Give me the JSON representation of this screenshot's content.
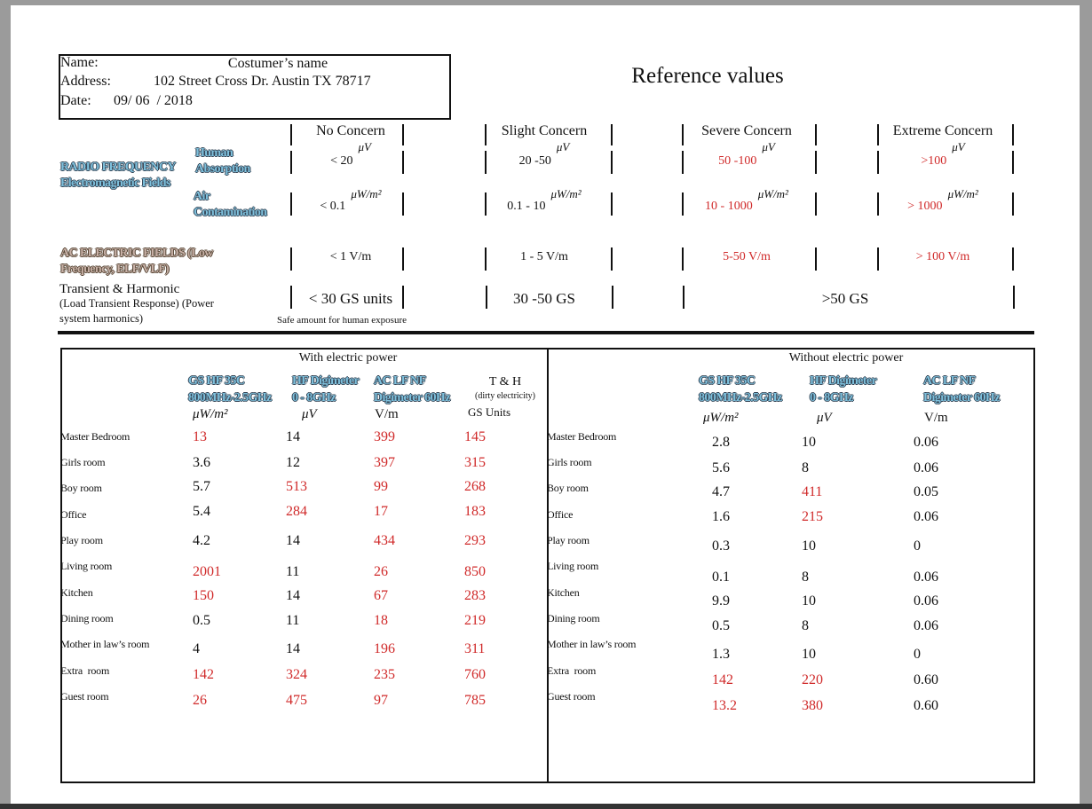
{
  "header": {
    "name_label": "Name:",
    "name": "Costumer’s name",
    "address_label": "Address:",
    "address": "102 Street Cross Dr. Austin TX 78717",
    "date_label": "Date:",
    "date": "09/ 06  / 2018"
  },
  "reference": {
    "title": "Reference values",
    "levels": [
      "No Concern",
      "Slight Concern",
      "Severe Concern",
      "Extreme Concern"
    ],
    "rf_label": [
      "RADIO FREQUENCY",
      "Electromagnetic Fields"
    ],
    "rows": [
      {
        "label": [
          "Human",
          "Absorption"
        ],
        "unit": "μV",
        "values": [
          "< 20",
          "20 -50",
          "50 -100",
          ">100"
        ]
      },
      {
        "label": [
          "Air",
          "Contamination"
        ],
        "unit": "μW/m²",
        "values": [
          "< 0.1",
          "0.1 - 10",
          "10 - 1000",
          "> 1000"
        ]
      },
      {
        "label": [
          "AC ELECTRIC FIELDS (Low",
          "Frequency, ELF/VLF)"
        ],
        "values": [
          "< 1 V/m",
          "1 - 5 V/m",
          "5-50 V/m",
          "> 100 V/m"
        ]
      },
      {
        "label": [
          "Transient & Harmonic",
          "(Load Transient Response) (Power",
          "system harmonics)"
        ],
        "values": [
          "< 30 GS units",
          "30 -50 GS",
          ">50 GS"
        ],
        "note": "Safe amount for human exposure"
      }
    ]
  },
  "measurements": [
    {
      "title": "With electric power",
      "columns": [
        {
          "name": [
            "GS HF 35C",
            "800MHz-2.5GHz"
          ],
          "unit": "μW/m²"
        },
        {
          "name": [
            "HF Digimeter",
            "0 - 8GHz"
          ],
          "unit": "μV"
        },
        {
          "name": [
            "AC LF NF",
            "Digimeter 60Hz"
          ],
          "unit": "V/m"
        },
        {
          "name": [
            "T & H"
          ],
          "sub": "(dirty electricity)",
          "unit": "GS Units"
        }
      ],
      "rows": [
        {
          "room": "Master Bedroom",
          "values": [
            "13",
            "14",
            "399",
            "145"
          ],
          "highlight": [
            true,
            false,
            true,
            true
          ]
        },
        {
          "room": "Girls room",
          "values": [
            "3.6",
            "12",
            "397",
            "315"
          ],
          "highlight": [
            false,
            false,
            true,
            true
          ]
        },
        {
          "room": "Boy room",
          "values": [
            "5.7",
            "513",
            "99",
            "268"
          ],
          "highlight": [
            false,
            true,
            true,
            true
          ]
        },
        {
          "room": "Office",
          "values": [
            "5.4",
            "284",
            "17",
            "183"
          ],
          "highlight": [
            false,
            true,
            true,
            true
          ]
        },
        {
          "room": "Play room",
          "values": [
            "4.2",
            "14",
            "434",
            "293"
          ],
          "highlight": [
            false,
            false,
            true,
            true
          ]
        },
        {
          "room": "Living room",
          "values": [
            "2001",
            "11",
            "26",
            "850"
          ],
          "highlight": [
            true,
            false,
            true,
            true
          ]
        },
        {
          "room": "Kitchen",
          "values": [
            "150",
            "14",
            "67",
            "283"
          ],
          "highlight": [
            true,
            false,
            true,
            true
          ]
        },
        {
          "room": "Dining room",
          "values": [
            "0.5",
            "11",
            "18",
            "219"
          ],
          "highlight": [
            false,
            false,
            true,
            true
          ]
        },
        {
          "room": "Mother in law’s room",
          "values": [
            "4",
            "14",
            "196",
            "311"
          ],
          "highlight": [
            false,
            false,
            true,
            true
          ]
        },
        {
          "room": "Extra  room",
          "values": [
            "142",
            "324",
            "235",
            "760"
          ],
          "highlight": [
            true,
            true,
            true,
            true
          ]
        },
        {
          "room": "Guest room",
          "values": [
            "26",
            "475",
            "97",
            "785"
          ],
          "highlight": [
            true,
            true,
            true,
            true
          ]
        }
      ]
    },
    {
      "title": "Without electric power",
      "columns": [
        {
          "name": [
            "GS HF 35C",
            "800MHz-2.5GHz"
          ],
          "unit": "μW/m²"
        },
        {
          "name": [
            "HF Digimeter",
            "0 - 8GHz"
          ],
          "unit": "μV"
        },
        {
          "name": [
            "AC LF NF",
            "Digimeter 60Hz"
          ],
          "unit": "V/m"
        }
      ],
      "rows": [
        {
          "room": "Master Bedroom",
          "values": [
            "2.8",
            "10",
            "0.06"
          ],
          "highlight": [
            false,
            false,
            false
          ]
        },
        {
          "room": "Girls room",
          "values": [
            "5.6",
            "8",
            "0.06"
          ],
          "highlight": [
            false,
            false,
            false
          ]
        },
        {
          "room": "Boy room",
          "values": [
            "4.7",
            "411",
            "0.05"
          ],
          "highlight": [
            false,
            true,
            false
          ]
        },
        {
          "room": "Office",
          "values": [
            "1.6",
            "215",
            "0.06"
          ],
          "highlight": [
            false,
            true,
            false
          ]
        },
        {
          "room": "Play room",
          "values": [
            "0.3",
            "10",
            "0"
          ],
          "highlight": [
            false,
            false,
            false
          ]
        },
        {
          "room": "Living room",
          "values": [
            "0.1",
            "8",
            "0.06"
          ],
          "highlight": [
            false,
            false,
            false
          ]
        },
        {
          "room": "Kitchen",
          "values": [
            "9.9",
            "10",
            "0.06"
          ],
          "highlight": [
            false,
            false,
            false
          ]
        },
        {
          "room": "Dining room",
          "values": [
            "0.5",
            "8",
            "0.06"
          ],
          "highlight": [
            false,
            false,
            false
          ]
        },
        {
          "room": "Mother in law’s room",
          "values": [
            "1.3",
            "10",
            "0"
          ],
          "highlight": [
            false,
            false,
            false
          ]
        },
        {
          "room": "Extra  room",
          "values": [
            "142",
            "220",
            "0.60"
          ],
          "highlight": [
            true,
            true,
            false
          ]
        },
        {
          "room": "Guest room",
          "values": [
            "13.2",
            "380",
            "0.60"
          ],
          "highlight": [
            true,
            true,
            false
          ]
        }
      ]
    }
  ]
}
